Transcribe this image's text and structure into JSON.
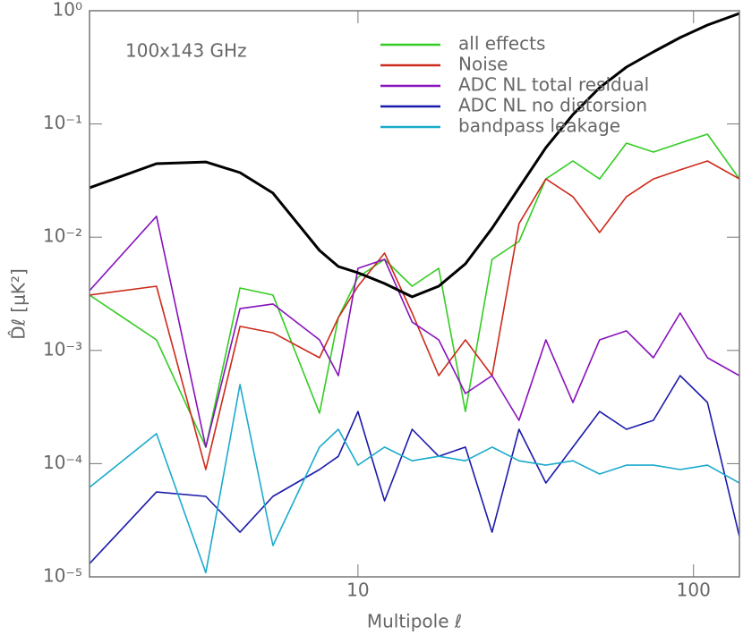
{
  "chart_data": {
    "type": "line",
    "annotation": "100x143 GHz",
    "xlabel": "Multipole ℓ",
    "ylabel": "D̂ℓ [μK²]",
    "xscale": "log",
    "yscale": "log",
    "legend": "top",
    "xlim": [
      1.585,
      137
    ],
    "ylim": [
      1e-05,
      1
    ],
    "xticks": [
      10,
      100
    ],
    "yticks": [
      {
        "value": 1e-05,
        "label": "10⁻⁵"
      },
      {
        "value": 0.0001,
        "label": "10⁻⁴"
      },
      {
        "value": 0.001,
        "label": "10⁻³"
      },
      {
        "value": 0.01,
        "label": "10⁻²"
      },
      {
        "value": 0.1,
        "label": "10⁻¹"
      },
      {
        "value": 1,
        "label": "10⁰"
      }
    ],
    "x": [
      1.585,
      2.51,
      3.52,
      4.45,
      5.58,
      7.68,
      8.74,
      10,
      12.0,
      14.5,
      17.4,
      20.9,
      25.1,
      30.2,
      36.3,
      43.7,
      52.5,
      63.1,
      75.9,
      91.2,
      110,
      137
    ],
    "reference_curve": {
      "color": "#000000",
      "values": [
        0.0273,
        0.0446,
        0.0462,
        0.0372,
        0.0245,
        0.00764,
        0.00551,
        0.00485,
        0.0039,
        0.00297,
        0.00369,
        0.00582,
        0.012,
        0.0273,
        0.0618,
        0.121,
        0.209,
        0.318,
        0.433,
        0.58,
        0.748,
        0.947
      ]
    },
    "series": [
      {
        "name": "all effects",
        "color": "#33cc22",
        "values": [
          0.00308,
          0.00124,
          0.00014,
          0.00356,
          0.00308,
          0.000279,
          0.00195,
          0.00443,
          0.00637,
          0.00369,
          0.00531,
          0.000289,
          0.00637,
          0.00917,
          0.0327,
          0.0471,
          0.0327,
          0.0678,
          0.0565,
          0.0678,
          0.0813,
          0.0327
        ]
      },
      {
        "name": "Noise",
        "color": "#cc2a1a",
        "values": [
          0.00308,
          0.00369,
          8.87e-05,
          0.00163,
          0.00143,
          0.000861,
          0.00195,
          0.00369,
          0.00723,
          0.00214,
          0.000599,
          0.00124,
          0.000599,
          0.0132,
          0.0327,
          0.0228,
          0.011,
          0.0228,
          0.0327,
          0.0393,
          0.0471,
          0.0327
        ]
      },
      {
        "name": "ADC NL total residual",
        "color": "#8811bb",
        "values": [
          0.00337,
          0.0153,
          0.00014,
          0.00234,
          0.00257,
          0.00124,
          0.000599,
          0.00531,
          0.00637,
          0.00178,
          0.00124,
          0.000416,
          0.000599,
          0.000241,
          0.00124,
          0.000347,
          0.00124,
          0.00149,
          0.000861,
          0.00214,
          0.000861,
          0.000599
        ]
      },
      {
        "name": "ADC NL no distorsion",
        "color": "#1a1aaa",
        "values": [
          1.31e-05,
          5.62e-05,
          5.14e-05,
          2.48e-05,
          5.14e-05,
          8.87e-05,
          0.000116,
          0.000289,
          4.69e-05,
          0.000201,
          0.000116,
          0.00014,
          2.48e-05,
          0.000201,
          6.75e-05,
          0.00014,
          0.000289,
          0.000201,
          0.000241,
          0.000599,
          0.000347,
          2.27e-05
        ]
      },
      {
        "name": "bandpass leakage",
        "color": "#1aaacc",
        "values": [
          6.17e-05,
          0.000184,
          1.09e-05,
          0.0005,
          1.89e-05,
          0.00014,
          0.000201,
          9.7e-05,
          0.00014,
          0.000106,
          0.000116,
          0.000106,
          0.00014,
          0.000106,
          9.7e-05,
          0.000106,
          8.1e-05,
          9.7e-05,
          9.7e-05,
          8.87e-05,
          9.7e-05,
          6.75e-05
        ]
      }
    ]
  }
}
